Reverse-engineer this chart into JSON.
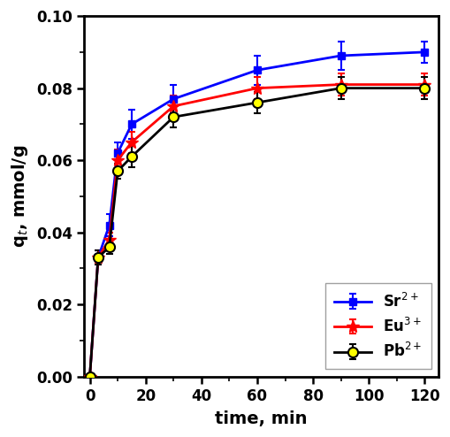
{
  "Sr_x": [
    0,
    3,
    7,
    10,
    15,
    30,
    60,
    90,
    120
  ],
  "Sr_y": [
    0.0,
    0.033,
    0.042,
    0.062,
    0.07,
    0.077,
    0.085,
    0.089,
    0.09
  ],
  "Sr_yerr": [
    0.0,
    0.002,
    0.003,
    0.003,
    0.004,
    0.004,
    0.004,
    0.004,
    0.003
  ],
  "Eu_x": [
    0,
    3,
    7,
    10,
    15,
    30,
    60,
    90,
    120
  ],
  "Eu_y": [
    0.0,
    0.033,
    0.038,
    0.06,
    0.065,
    0.075,
    0.08,
    0.081,
    0.081
  ],
  "Eu_yerr": [
    0.0,
    0.002,
    0.002,
    0.003,
    0.003,
    0.003,
    0.003,
    0.003,
    0.003
  ],
  "Pb_x": [
    0,
    3,
    7,
    10,
    15,
    30,
    60,
    90,
    120
  ],
  "Pb_y": [
    0.0,
    0.033,
    0.036,
    0.057,
    0.061,
    0.072,
    0.076,
    0.08,
    0.08
  ],
  "Pb_yerr": [
    0.0,
    0.002,
    0.002,
    0.002,
    0.003,
    0.003,
    0.003,
    0.003,
    0.003
  ],
  "Sr_color": "#0000ff",
  "Eu_color": "#ff0000",
  "Pb_color": "#000000",
  "xlabel": "time, min",
  "ylabel": "q$_t$, mmol/g",
  "xlim": [
    -2,
    125
  ],
  "ylim": [
    0.0,
    0.1
  ],
  "xticks": [
    0,
    20,
    40,
    60,
    80,
    100,
    120
  ],
  "yticks": [
    0.0,
    0.02,
    0.04,
    0.06,
    0.08,
    0.1
  ]
}
